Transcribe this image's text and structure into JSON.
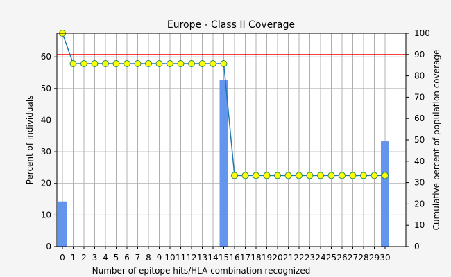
{
  "chart_data": {
    "type": "bar+line",
    "title": "Europe - Class II Coverage",
    "xlabel": "Number of epitope hits/HLA combination recognized",
    "ylabel_left": "Percent of individuals",
    "ylabel_right": "Cumulative percent of population coverage",
    "x": [
      0,
      1,
      2,
      3,
      4,
      5,
      6,
      7,
      8,
      9,
      10,
      11,
      12,
      13,
      14,
      15,
      16,
      17,
      18,
      19,
      20,
      21,
      22,
      23,
      24,
      25,
      26,
      27,
      28,
      29,
      30
    ],
    "x_tick_labels": [
      "0",
      "1",
      "2",
      "3",
      "4",
      "5",
      "6",
      "7",
      "8",
      "9",
      "10",
      "11",
      "12",
      "13",
      "14",
      "15",
      "16",
      "17",
      "18",
      "19",
      "20",
      "21",
      "22",
      "23",
      "24",
      "25",
      "26",
      "27",
      "28",
      "29",
      "30"
    ],
    "ylim_left": [
      0,
      67.5
    ],
    "yticks_left": [
      "0",
      "10",
      "20",
      "30",
      "40",
      "50",
      "60"
    ],
    "ylim_right": [
      0,
      100
    ],
    "yticks_right": [
      "0",
      "10",
      "20",
      "30",
      "40",
      "50",
      "60",
      "70",
      "80",
      "90",
      "100"
    ],
    "bars": {
      "name": "Percent of individuals",
      "color": "#6495ED",
      "values": [
        14.3,
        0,
        0,
        0,
        0,
        0,
        0,
        0,
        0,
        0,
        0,
        0,
        0,
        0,
        0,
        52.6,
        0,
        0,
        0,
        0,
        0,
        0,
        0,
        0,
        0,
        0,
        0,
        0,
        0,
        0,
        33.3
      ]
    },
    "cumulative": {
      "name": "Cumulative percent of population coverage",
      "line_color": "#1f77b4",
      "marker_fill": "#ffff00",
      "marker_edge": "#2e8b57",
      "values": [
        100,
        85.7,
        85.7,
        85.7,
        85.7,
        85.7,
        85.7,
        85.7,
        85.7,
        85.7,
        85.7,
        85.7,
        85.7,
        85.7,
        85.7,
        85.7,
        33.3,
        33.3,
        33.3,
        33.3,
        33.3,
        33.3,
        33.3,
        33.3,
        33.3,
        33.3,
        33.3,
        33.3,
        33.3,
        33.3,
        33.3
      ]
    },
    "reference_line": {
      "value_right": 90,
      "color": "#ff0000"
    },
    "grid": true
  }
}
